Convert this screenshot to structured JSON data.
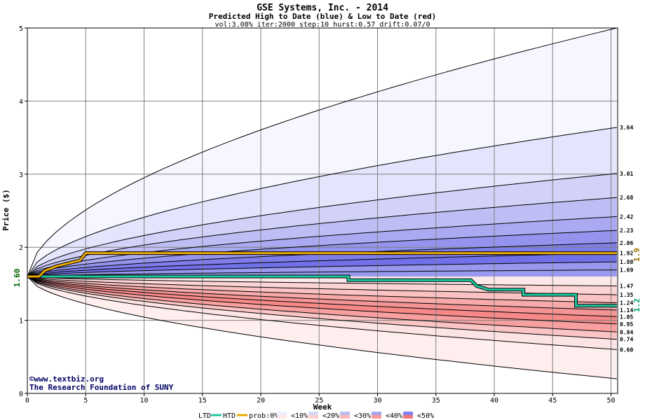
{
  "chart_data": {
    "type": "area",
    "title": "GSE Systems, Inc. - 2014",
    "subtitle": "Predicted High to Date (blue) &  Low to Date (red)",
    "params": "vol:3.08% iter:2000 step:10 hurst:0.57 drift:0.07/0",
    "xlabel": "Week",
    "ylabel": "Price ($)",
    "xlim": [
      0,
      50.5
    ],
    "ylim": [
      0,
      5
    ],
    "x_ticks": [
      0,
      5,
      10,
      15,
      20,
      25,
      30,
      35,
      40,
      45,
      50
    ],
    "y_ticks": [
      0,
      1,
      2,
      3,
      4,
      5
    ],
    "start_price": 1.6,
    "start_price_label": "1.60",
    "grid": true,
    "high_to_date_quantiles": [
      {
        "end": 5.0,
        "end_label": ""
      },
      {
        "end": 3.64,
        "end_label": "3.64"
      },
      {
        "end": 3.01,
        "end_label": "3.01"
      },
      {
        "end": 2.68,
        "end_label": "2.68"
      },
      {
        "end": 2.42,
        "end_label": "2.42"
      },
      {
        "end": 2.23,
        "end_label": "2.23"
      },
      {
        "end": 2.06,
        "end_label": "2.06"
      },
      {
        "end": 1.92,
        "end_label": "1.92"
      },
      {
        "end": 1.8,
        "end_label": "1.80"
      },
      {
        "end": 1.69,
        "end_label": "1.69"
      }
    ],
    "low_to_date_quantiles": [
      {
        "end": 1.47,
        "end_label": "1.47"
      },
      {
        "end": 1.35,
        "end_label": "1.35"
      },
      {
        "end": 1.24,
        "end_label": "1.24"
      },
      {
        "end": 1.14,
        "end_label": "1.14"
      },
      {
        "end": 1.05,
        "end_label": "1.05"
      },
      {
        "end": 0.95,
        "end_label": "0.95"
      },
      {
        "end": 0.84,
        "end_label": "0.84"
      },
      {
        "end": 0.74,
        "end_label": "0.74"
      },
      {
        "end": 0.6,
        "end_label": "0.60"
      },
      {
        "end": 0.2,
        "end_label": ""
      }
    ],
    "actual_high_to_date": {
      "name": "HTD",
      "color": "#e8a800",
      "points": [
        [
          0,
          1.6
        ],
        [
          1,
          1.6
        ],
        [
          1.5,
          1.68
        ],
        [
          2.5,
          1.74
        ],
        [
          3.5,
          1.78
        ],
        [
          4.5,
          1.82
        ],
        [
          5,
          1.92
        ],
        [
          50.5,
          1.92
        ]
      ],
      "current_label": "1.9"
    },
    "actual_low_to_date": {
      "name": "LTD",
      "color": "#20c8a0",
      "points": [
        [
          0,
          1.6
        ],
        [
          27.5,
          1.6
        ],
        [
          27.5,
          1.55
        ],
        [
          38,
          1.55
        ],
        [
          38.5,
          1.47
        ],
        [
          39.5,
          1.42
        ],
        [
          42.5,
          1.42
        ],
        [
          42.5,
          1.35
        ],
        [
          47,
          1.35
        ],
        [
          47,
          1.2
        ],
        [
          50.5,
          1.2
        ]
      ],
      "current_label": "1.2"
    },
    "legend": {
      "ltd": "LTD",
      "htd": "HTD",
      "prob": "prob:0%",
      "bins": [
        "<10%",
        "<20%",
        "<30%",
        "<40%",
        "<50%"
      ],
      "bin_colors": [
        "#f0f0ff",
        "#d6d6f6",
        "#bcbcee",
        "#a8a8ee",
        "#8080f0"
      ],
      "bin_colors_low": [
        "#ffe8e8",
        "#ffd0d0",
        "#ffb8b8",
        "#ff9898",
        "#f47878"
      ]
    },
    "colors": {
      "plot_bg": "#ffffff",
      "grid": "#808080",
      "high_fills": [
        "#f6f6ff",
        "#e4e4fc",
        "#d2d2f8",
        "#bebef4",
        "#aaaaf2",
        "#9494ee",
        "#7e7eea",
        "#7070e8",
        "#9898ee"
      ],
      "low_fills": [
        "#fce8e8",
        "#fcd4d4",
        "#fac2c2",
        "#f8aaaa",
        "#f49494",
        "#f68888",
        "#f8a0a0",
        "#fac4c4",
        "#fde4e4"
      ],
      "start_label_color": "#006000",
      "htd_label_color": "#a07000",
      "ltd_label_color": "#00a070"
    }
  },
  "credits": {
    "line1": "©www.textbiz.org",
    "line2": "The Research Foundation of SUNY"
  }
}
